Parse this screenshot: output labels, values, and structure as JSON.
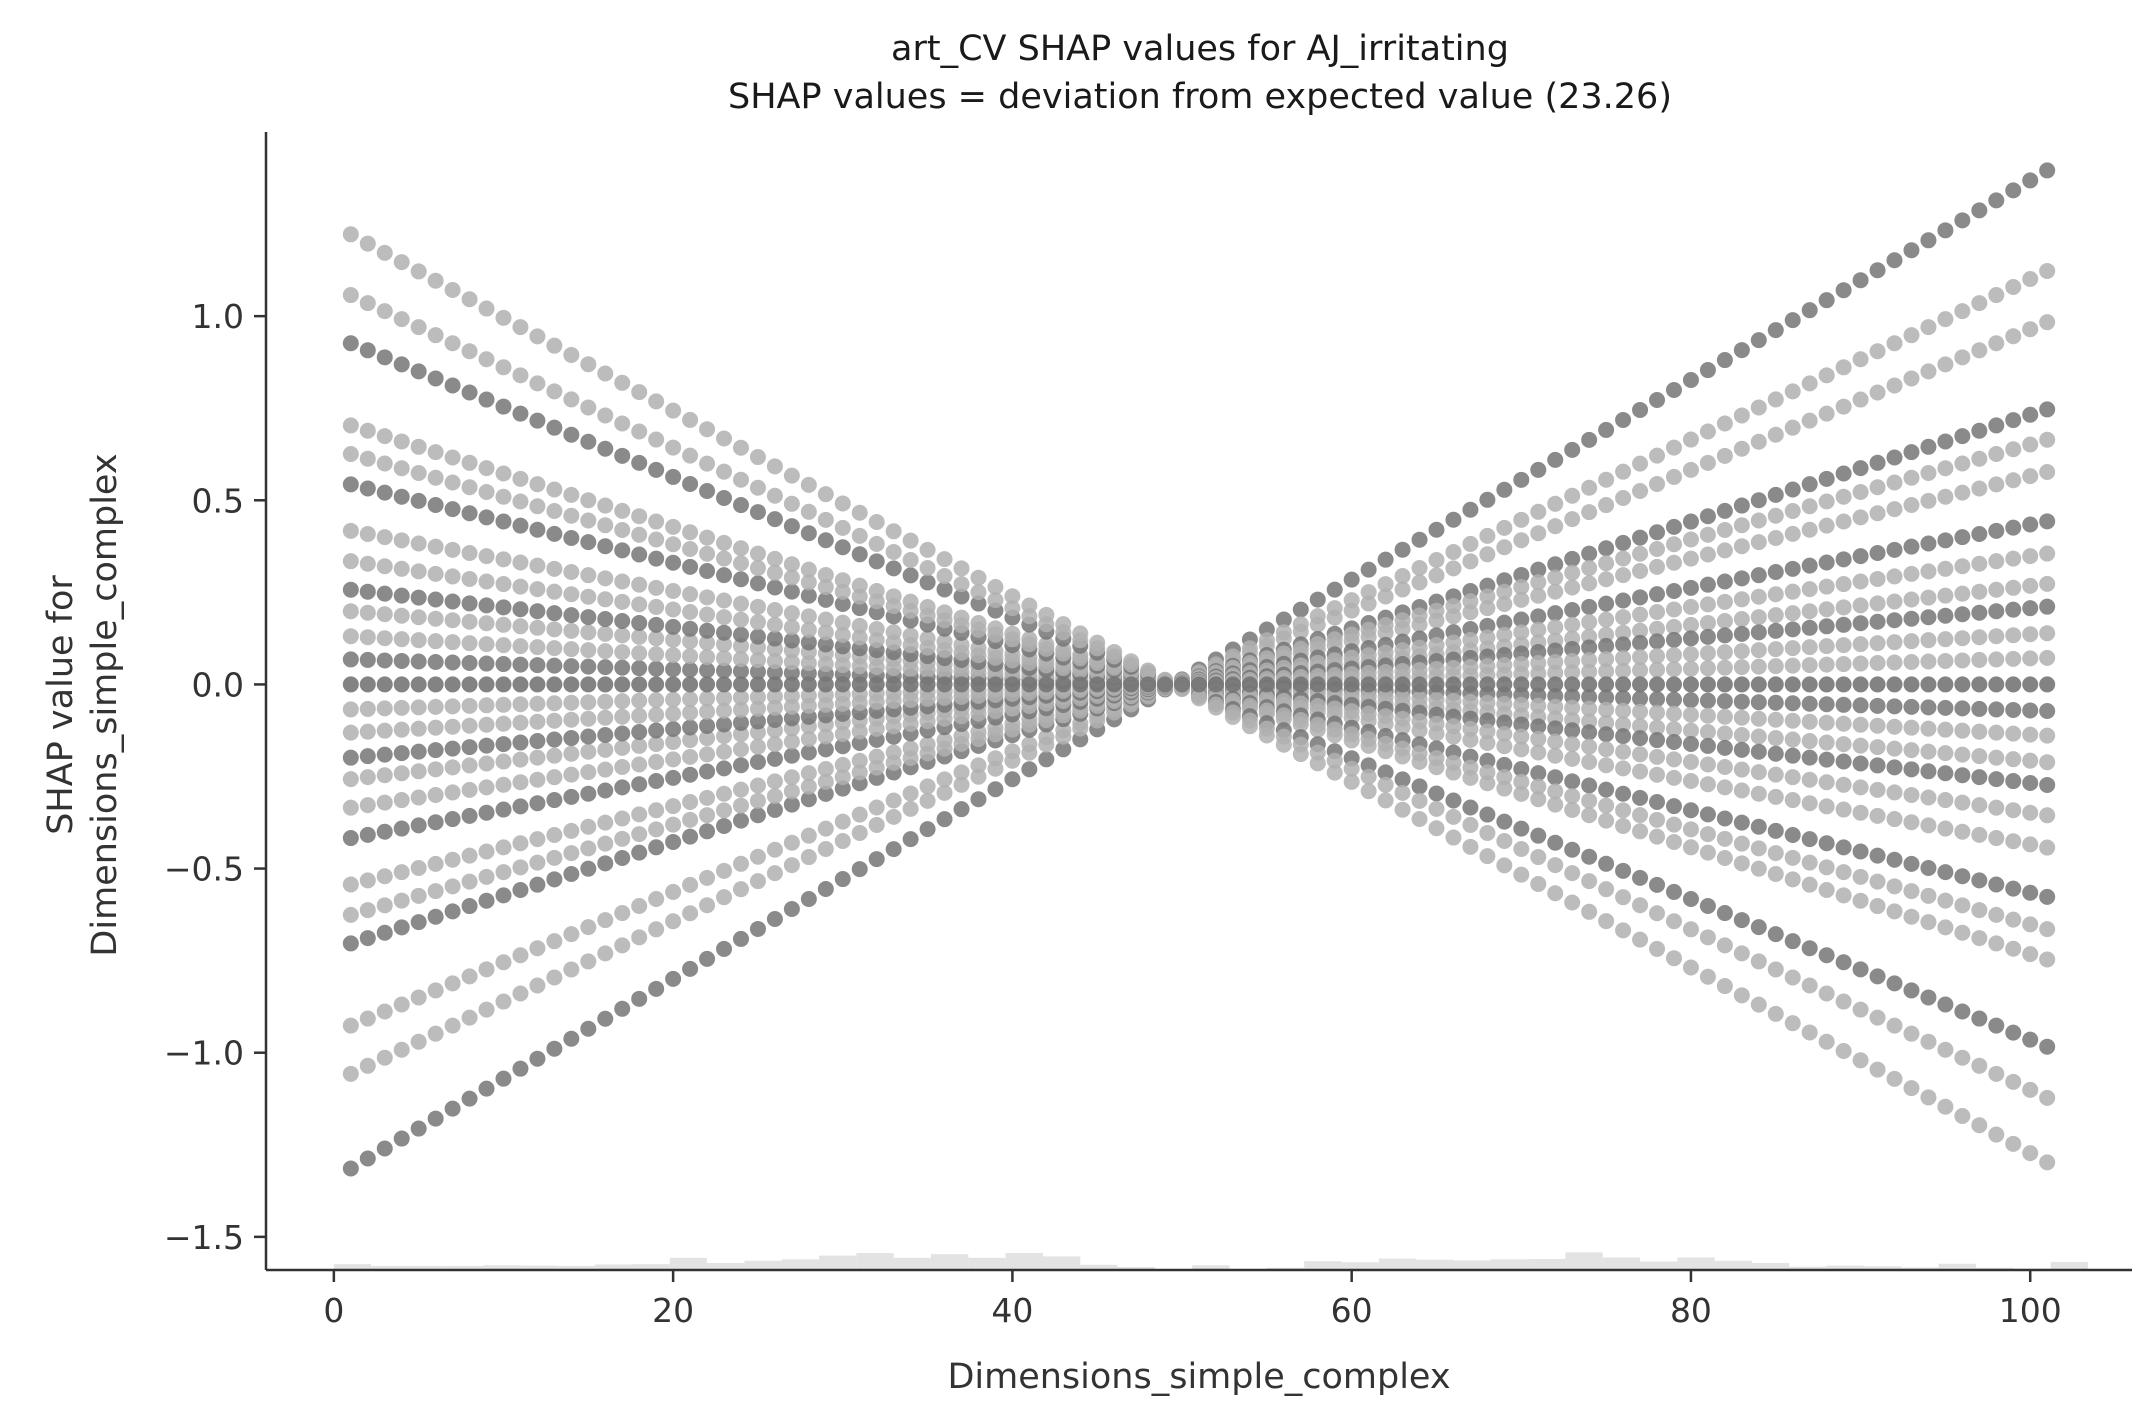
{
  "chart_data": {
    "type": "scatter",
    "title": "art_CV SHAP values for AJ_irritating",
    "subtitle": "SHAP values = deviation from expected value (23.26)",
    "xlabel": "Dimensions_simple_complex",
    "ylabel_line1": "SHAP value for",
    "ylabel_line2": "Dimensions_simple_complex",
    "xlim": [
      -4,
      106
    ],
    "ylim": [
      -1.59,
      1.5
    ],
    "xticks": [
      0,
      20,
      40,
      60,
      80,
      100
    ],
    "xtick_labels": [
      "0",
      "20",
      "40",
      "60",
      "80",
      "100"
    ],
    "yticks": [
      1.0,
      0.5,
      0.0,
      -0.5,
      -1.0,
      -1.5
    ],
    "ytick_labels": [
      "1.0",
      "0.5",
      "0.0",
      "−0.5",
      "−1.0",
      "−1.5"
    ],
    "grid": false,
    "legend": "none",
    "center_x": 49.5,
    "slopes": [
      0.0271,
      0.0218,
      0.0191,
      0.0145,
      0.0129,
      0.0112,
      0.0086,
      0.0069,
      0.0053,
      0.0041,
      0.0027,
      0.0014,
      -0.0014,
      -0.0027,
      -0.0041,
      -0.0053,
      -0.0069,
      -0.0086,
      -0.0112,
      -0.0129,
      -0.0145,
      -0.0191,
      -0.0218,
      -0.0252
    ],
    "point_color_light": "#b0b0b0",
    "point_color_dark": "#757575",
    "histogram": {
      "bin_start": 0,
      "bin_width": 2.2,
      "heights": [
        0.016,
        0.011,
        0.011,
        0.011,
        0.013,
        0.012,
        0.011,
        0.015,
        0.016,
        0.033,
        0.019,
        0.025,
        0.029,
        0.039,
        0.046,
        0.033,
        0.043,
        0.033,
        0.046,
        0.037,
        0.014,
        0.008,
        0.002,
        0.013,
        0.003,
        0.006,
        0.024,
        0.021,
        0.031,
        0.028,
        0.026,
        0.029,
        0.03,
        0.048,
        0.034,
        0.023,
        0.034,
        0.025,
        0.019,
        0.009,
        0.012,
        0.01,
        0.007,
        0.017,
        0.006,
        0.004,
        0.022
      ],
      "color": "#e3e3e3"
    }
  }
}
